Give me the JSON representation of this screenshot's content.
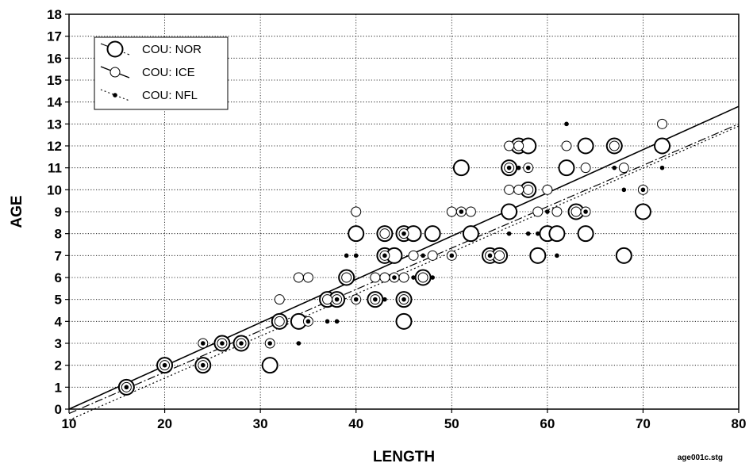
{
  "chart_data": {
    "type": "scatter",
    "xlabel": "LENGTH",
    "ylabel": "AGE",
    "xlim": [
      10,
      80
    ],
    "ylim": [
      0,
      18
    ],
    "xticks": [
      10,
      20,
      30,
      40,
      50,
      60,
      70,
      80
    ],
    "yticks": [
      0,
      1,
      2,
      3,
      4,
      5,
      6,
      7,
      8,
      9,
      10,
      11,
      12,
      13,
      14,
      15,
      16,
      17,
      18
    ],
    "grid": true,
    "legend_position": "top-left",
    "footnote": "age001c.stg",
    "series": [
      {
        "name": "COU: NOR",
        "marker": "large-open-circle",
        "fit_line": "dash",
        "fit": {
          "x": [
            10,
            80
          ],
          "y": [
            -0.2,
            13.0
          ]
        },
        "points": [
          [
            16,
            1
          ],
          [
            20,
            2
          ],
          [
            24,
            2
          ],
          [
            26,
            3
          ],
          [
            28,
            3
          ],
          [
            31,
            2
          ],
          [
            32,
            4
          ],
          [
            34,
            4
          ],
          [
            37,
            5
          ],
          [
            38,
            5
          ],
          [
            39,
            6
          ],
          [
            40,
            8
          ],
          [
            42,
            5
          ],
          [
            43,
            7
          ],
          [
            43,
            8
          ],
          [
            44,
            7
          ],
          [
            45,
            4
          ],
          [
            45,
            5
          ],
          [
            45,
            8
          ],
          [
            46,
            8
          ],
          [
            47,
            6
          ],
          [
            48,
            8
          ],
          [
            51,
            11
          ],
          [
            52,
            8
          ],
          [
            54,
            7
          ],
          [
            55,
            7
          ],
          [
            56,
            9
          ],
          [
            56,
            11
          ],
          [
            57,
            12
          ],
          [
            58,
            10
          ],
          [
            58,
            12
          ],
          [
            59,
            7
          ],
          [
            60,
            8
          ],
          [
            61,
            8
          ],
          [
            62,
            11
          ],
          [
            63,
            9
          ],
          [
            64,
            8
          ],
          [
            64,
            12
          ],
          [
            67,
            12
          ],
          [
            68,
            7
          ],
          [
            70,
            9
          ],
          [
            72,
            12
          ]
        ]
      },
      {
        "name": "COU: ICE",
        "marker": "small-open-circle",
        "fit_line": "solid",
        "fit": {
          "x": [
            10,
            80
          ],
          "y": [
            0.0,
            13.8
          ]
        },
        "points": [
          [
            16,
            1
          ],
          [
            20,
            2
          ],
          [
            24,
            2
          ],
          [
            24,
            3
          ],
          [
            26,
            3
          ],
          [
            28,
            3
          ],
          [
            31,
            3
          ],
          [
            32,
            4
          ],
          [
            32,
            5
          ],
          [
            34,
            6
          ],
          [
            35,
            4
          ],
          [
            35,
            6
          ],
          [
            37,
            5
          ],
          [
            38,
            5
          ],
          [
            39,
            6
          ],
          [
            40,
            5
          ],
          [
            40,
            9
          ],
          [
            42,
            5
          ],
          [
            42,
            6
          ],
          [
            43,
            6
          ],
          [
            43,
            7
          ],
          [
            43,
            8
          ],
          [
            44,
            6
          ],
          [
            45,
            5
          ],
          [
            45,
            6
          ],
          [
            45,
            8
          ],
          [
            46,
            7
          ],
          [
            47,
            6
          ],
          [
            48,
            7
          ],
          [
            50,
            7
          ],
          [
            50,
            9
          ],
          [
            51,
            9
          ],
          [
            52,
            9
          ],
          [
            54,
            7
          ],
          [
            55,
            7
          ],
          [
            56,
            10
          ],
          [
            56,
            11
          ],
          [
            56,
            12
          ],
          [
            57,
            10
          ],
          [
            57,
            12
          ],
          [
            58,
            10
          ],
          [
            58,
            11
          ],
          [
            59,
            9
          ],
          [
            60,
            10
          ],
          [
            61,
            9
          ],
          [
            62,
            12
          ],
          [
            63,
            9
          ],
          [
            64,
            9
          ],
          [
            64,
            11
          ],
          [
            67,
            12
          ],
          [
            68,
            11
          ],
          [
            70,
            10
          ],
          [
            72,
            13
          ]
        ]
      },
      {
        "name": "COU: NFL",
        "marker": "dot",
        "fit_line": "dot",
        "fit": {
          "x": [
            10,
            80
          ],
          "y": [
            -0.5,
            12.9
          ]
        },
        "points": [
          [
            16,
            1
          ],
          [
            20,
            2
          ],
          [
            24,
            2
          ],
          [
            24,
            3
          ],
          [
            26,
            3
          ],
          [
            28,
            3
          ],
          [
            31,
            3
          ],
          [
            34,
            3
          ],
          [
            35,
            4
          ],
          [
            37,
            4
          ],
          [
            38,
            4
          ],
          [
            38,
            5
          ],
          [
            39,
            7
          ],
          [
            40,
            5
          ],
          [
            40,
            7
          ],
          [
            42,
            5
          ],
          [
            43,
            5
          ],
          [
            43,
            7
          ],
          [
            44,
            6
          ],
          [
            45,
            5
          ],
          [
            45,
            8
          ],
          [
            46,
            6
          ],
          [
            47,
            7
          ],
          [
            48,
            6
          ],
          [
            50,
            7
          ],
          [
            51,
            9
          ],
          [
            54,
            7
          ],
          [
            56,
            8
          ],
          [
            56,
            11
          ],
          [
            57,
            11
          ],
          [
            58,
            8
          ],
          [
            58,
            11
          ],
          [
            59,
            8
          ],
          [
            60,
            9
          ],
          [
            61,
            7
          ],
          [
            62,
            13
          ],
          [
            64,
            9
          ],
          [
            67,
            11
          ],
          [
            68,
            10
          ],
          [
            70,
            10
          ],
          [
            72,
            11
          ]
        ]
      }
    ]
  }
}
